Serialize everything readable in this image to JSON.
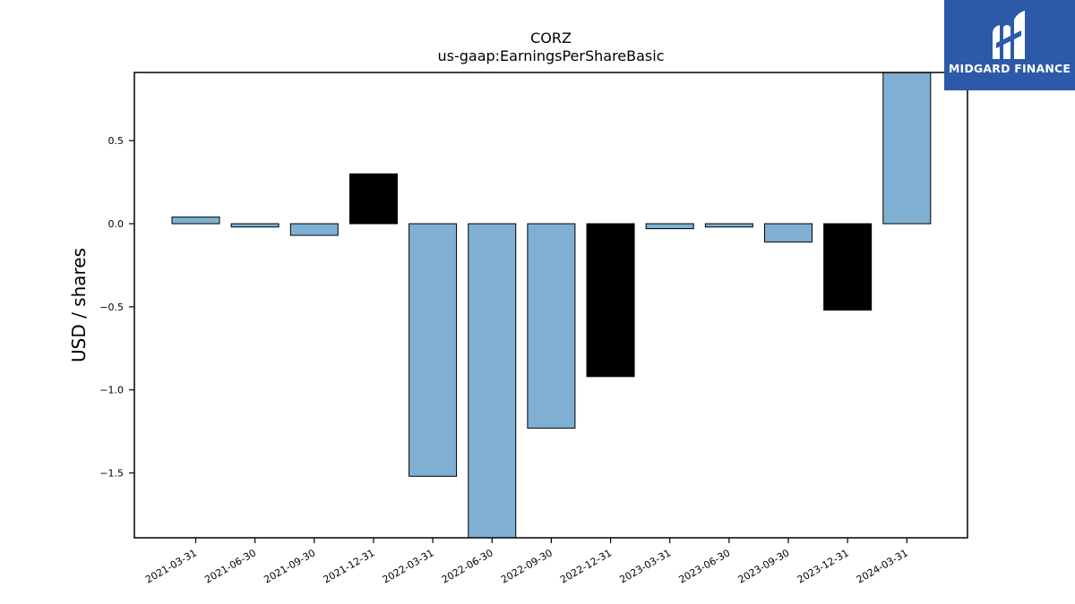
{
  "chart_data": {
    "type": "bar",
    "title": "CORZ",
    "subtitle": "us-gaap:EarningsPerShareBasic",
    "xlabel": "",
    "ylabel": "USD / shares",
    "ylim": [
      -1.89,
      0.91
    ],
    "yticks": [
      0.5,
      0.0,
      -0.5,
      -1.0,
      -1.5
    ],
    "ytick_labels": [
      "0.5",
      "0.0",
      "−0.5",
      "−1.0",
      "−1.5"
    ],
    "grid": false,
    "legend": "none",
    "categories": [
      "2021-03-31",
      "2021-06-30",
      "2021-09-30",
      "2021-12-31",
      "2022-03-31",
      "2022-06-30",
      "2022-09-30",
      "2022-12-31",
      "2023-03-31",
      "2023-06-30",
      "2023-09-30",
      "2023-12-31",
      "2024-03-31"
    ],
    "values": [
      0.04,
      -0.02,
      -0.07,
      0.3,
      -1.52,
      -1.97,
      -1.23,
      -0.92,
      -0.03,
      -0.02,
      -0.11,
      -0.52,
      1.08
    ],
    "bar_types": [
      "quarter",
      "quarter",
      "quarter",
      "annual",
      "quarter",
      "quarter",
      "quarter",
      "annual",
      "quarter",
      "quarter",
      "quarter",
      "annual",
      "quarter"
    ],
    "colors": {
      "quarter": "#7fb0d3",
      "annual": "#000000",
      "edge": "#000000"
    }
  },
  "logo": {
    "text": "MIDGARD FINANCE"
  }
}
